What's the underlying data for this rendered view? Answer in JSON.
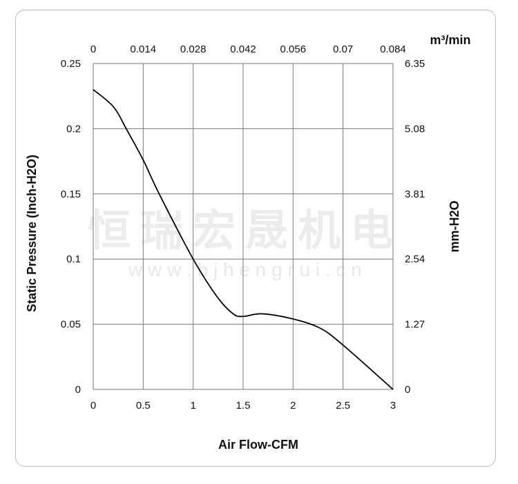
{
  "chart_data": {
    "type": "line",
    "xlabel": "Air Flow-CFM",
    "ylabel": "Static Pressure (Inch-H2O)",
    "y2label": "mm-H2O",
    "x2label": "m³/min",
    "xlim": [
      0,
      3
    ],
    "ylim": [
      0,
      0.25
    ],
    "x_ticks": [
      "0",
      "0.5",
      "1",
      "1.5",
      "2",
      "2.5",
      "3"
    ],
    "y_ticks": [
      "0",
      "0.05",
      "0.1",
      "0.15",
      "0.2",
      "0.25"
    ],
    "x2_ticks": [
      "0",
      "0.014",
      "0.028",
      "0.042",
      "0.056",
      "0.07",
      "0.084"
    ],
    "y2_ticks": [
      "0",
      "1.27",
      "2.54",
      "3.81",
      "5.08",
      "6.35"
    ],
    "grid": true,
    "series": [
      {
        "x": [
          0,
          0.2,
          0.33,
          0.5,
          0.66,
          1.0,
          1.24,
          1.4,
          1.5,
          1.69,
          2.0,
          2.27,
          2.5,
          3.0
        ],
        "y": [
          0.23,
          0.217,
          0.2,
          0.176,
          0.15,
          0.1,
          0.071,
          0.058,
          0.056,
          0.058,
          0.054,
          0.047,
          0.034,
          0
        ],
        "color": "#000000"
      }
    ]
  },
  "watermark": {
    "text": "恒瑞宏晟机电",
    "url": "w w w . b j h e n g r u i . c n"
  }
}
